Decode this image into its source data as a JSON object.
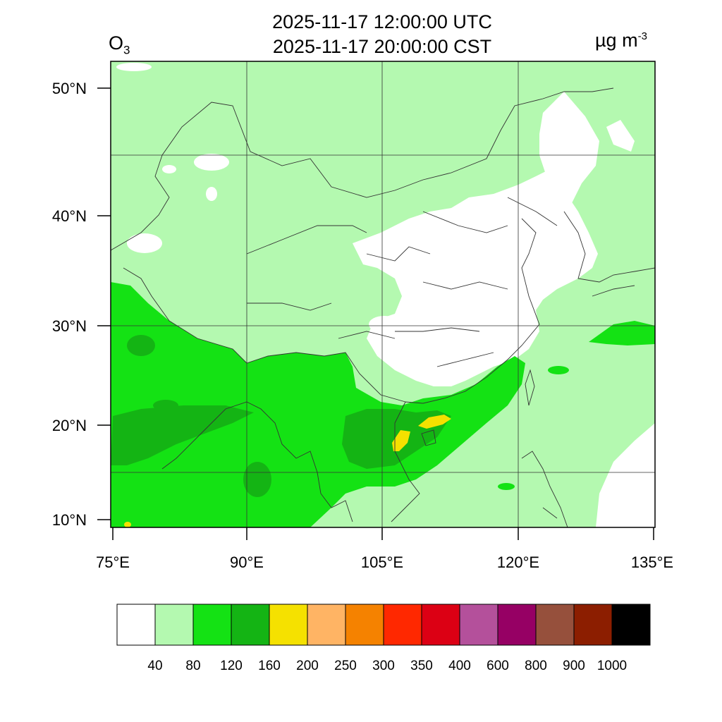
{
  "title_utc": "2025-11-17 12:00:00 UTC",
  "title_cst": "2025-11-17 20:00:00 CST",
  "species": {
    "base": "O",
    "sub": "3"
  },
  "units": {
    "base": "µg m",
    "sup": "-3"
  },
  "lat_labels": [
    "50°N",
    "40°N",
    "30°N",
    "20°N",
    "10°N"
  ],
  "lon_labels": [
    "75°E",
    "90°E",
    "105°E",
    "120°E",
    "135°E"
  ],
  "colorbar": {
    "colors": [
      "#ffffff",
      "#b4f9b0",
      "#14e214",
      "#14b414",
      "#f5e100",
      "#ffb464",
      "#f58200",
      "#ff2800",
      "#dc0014",
      "#b4509b",
      "#960064",
      "#96503c",
      "#8c1e00",
      "#000000"
    ],
    "labels": [
      "40",
      "80",
      "120",
      "160",
      "200",
      "250",
      "300",
      "350",
      "400",
      "600",
      "800",
      "900",
      "1000"
    ]
  }
}
